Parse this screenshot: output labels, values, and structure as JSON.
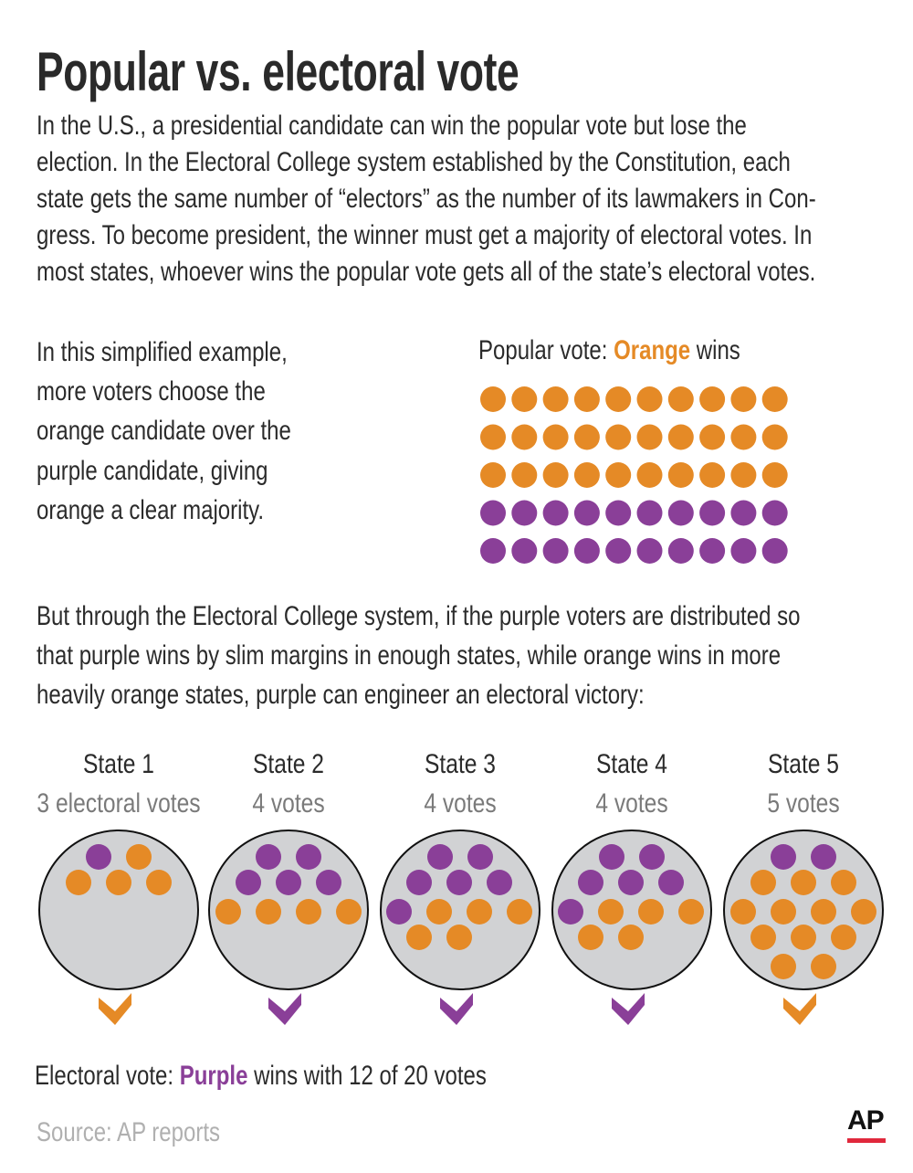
{
  "title": "Popular vs. electoral vote",
  "intro": {
    "lines": [
      "In the U.S., a presidential candidate can win the popular vote but lose the",
      "election. In the Electoral College system established by the Constitution, each",
      "state gets the same number of “electors” as the number of its lawmakers in Con-",
      "gress. To become  president, the winner must get a majority of electoral votes. In",
      "most states, whoever wins the popular vote gets all of the state’s electoral votes."
    ]
  },
  "example": {
    "lines": [
      "In this simplified example,",
      "more voters choose the",
      "orange candidate over the",
      "purple candidate, giving",
      "orange a clear majority."
    ]
  },
  "popular_vote": {
    "prefix": "Popular vote: ",
    "winner": "Orange",
    "suffix": " wins",
    "grid_rows": [
      "orange",
      "orange",
      "orange",
      "purple",
      "purple"
    ],
    "per_row": 10
  },
  "explanation": {
    "lines": [
      "But through the Electoral College system, if the purple voters are distributed so",
      "that purple wins by slim margins in enough states, while orange wins in more",
      "heavily orange states, purple can engineer an electoral victory:"
    ]
  },
  "states": [
    {
      "name": "State 1",
      "votes": "3 electoral votes",
      "winner": "orange",
      "rows": [
        [
          "purple",
          "orange"
        ],
        [
          "orange",
          "orange",
          "orange"
        ]
      ]
    },
    {
      "name": "State 2",
      "votes": "4 votes",
      "winner": "purple",
      "rows": [
        [
          "purple",
          "purple"
        ],
        [
          "purple",
          "purple",
          "purple"
        ],
        [
          "orange",
          "orange",
          "orange",
          "orange"
        ]
      ]
    },
    {
      "name": "State 3",
      "votes": "4 votes",
      "winner": "purple",
      "rows": [
        [
          "purple",
          "purple"
        ],
        [
          "purple",
          "purple",
          "purple"
        ],
        [
          "purple",
          "orange",
          "orange",
          "orange"
        ],
        [
          "orange",
          "orange"
        ]
      ]
    },
    {
      "name": "State 4",
      "votes": "4 votes",
      "winner": "purple",
      "rows": [
        [
          "purple",
          "purple"
        ],
        [
          "purple",
          "purple",
          "purple"
        ],
        [
          "purple",
          "orange",
          "orange",
          "orange"
        ],
        [
          "orange",
          "orange"
        ]
      ]
    },
    {
      "name": "State 5",
      "votes": "5 votes",
      "winner": "orange",
      "rows": [
        [
          "purple",
          "purple"
        ],
        [
          "orange",
          "orange",
          "orange"
        ],
        [
          "orange",
          "orange",
          "orange",
          "orange"
        ],
        [
          "orange",
          "orange",
          "orange"
        ],
        [
          "orange",
          "orange"
        ]
      ]
    }
  ],
  "electoral_vote": {
    "prefix": "Electoral vote: ",
    "winner": "Purple",
    "suffix": " wins with 12 of 20 votes"
  },
  "source": "Source: AP reports",
  "logo": "AP",
  "colors": {
    "orange": "#e58a26",
    "purple": "#8a3f98",
    "state_fill": "#d1d2d4",
    "accent_red": "#e0283c"
  }
}
